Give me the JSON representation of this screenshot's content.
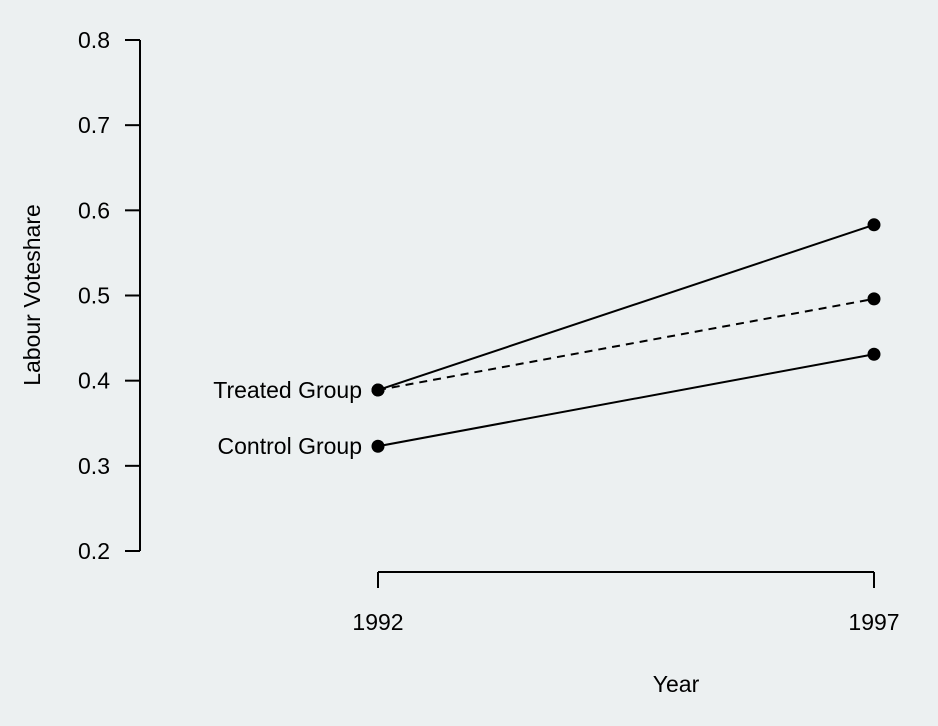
{
  "chart_data": {
    "type": "line",
    "title": "",
    "xlabel": "Year",
    "ylabel": "Labour Voteshare",
    "ylim": [
      0.2,
      0.8
    ],
    "yticks": [
      "0.2",
      "0.3",
      "0.4",
      "0.5",
      "0.6",
      "0.7",
      "0.8"
    ],
    "x": [
      "1992",
      "1997"
    ],
    "grid": false,
    "background": "#ecf0f1",
    "line_color": "#000000",
    "series": [
      {
        "name": "Treated Group",
        "values": [
          0.389,
          0.583
        ],
        "style": "solid"
      },
      {
        "values": [
          0.389,
          0.496
        ],
        "style": "dashed"
      },
      {
        "name": "Control Group",
        "values": [
          0.323,
          0.431
        ],
        "style": "solid"
      }
    ]
  }
}
